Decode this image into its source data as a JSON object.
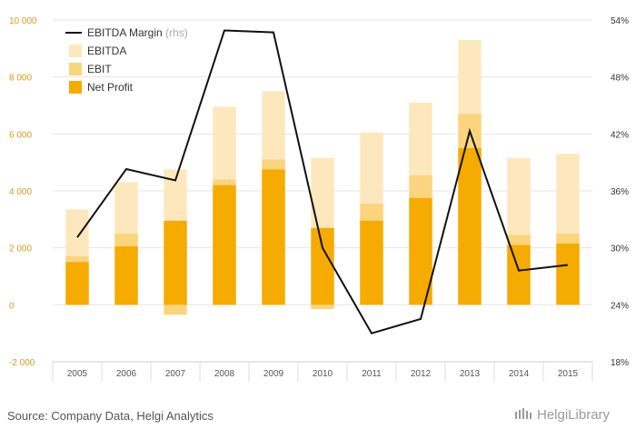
{
  "chart_data": {
    "type": "bar",
    "categories": [
      "2005",
      "2006",
      "2007",
      "2008",
      "2009",
      "2010",
      "2011",
      "2012",
      "2013",
      "2014",
      "2015"
    ],
    "series": [
      {
        "name": "EBITDA",
        "type": "bar",
        "axis": "left",
        "values": [
          3350,
          4300,
          4750,
          6950,
          7500,
          5150,
          6050,
          7100,
          9300,
          5150,
          5300
        ]
      },
      {
        "name": "EBIT",
        "type": "bar",
        "axis": "left",
        "values": [
          1700,
          2500,
          -350,
          4400,
          5100,
          -150,
          3550,
          4550,
          6700,
          2450,
          2500
        ]
      },
      {
        "name": "Net Profit",
        "type": "bar",
        "axis": "left",
        "values": [
          1500,
          2050,
          2950,
          4200,
          4750,
          2700,
          2950,
          3750,
          5500,
          2100,
          2150
        ]
      },
      {
        "name": "EBITDA Margin",
        "unit_note": "(rhs)",
        "type": "line",
        "axis": "right",
        "values": [
          31.1,
          38.3,
          37.1,
          52.9,
          52.7,
          30.0,
          21.0,
          22.5,
          42.3,
          27.6,
          28.2
        ]
      }
    ],
    "y_left": {
      "min": -2000,
      "max": 10000,
      "ticks": [
        -2000,
        0,
        2000,
        4000,
        6000,
        8000,
        10000
      ],
      "tick_labels": [
        "-2 000",
        "0",
        "2 000",
        "4 000",
        "6 000",
        "8 000",
        "10 000"
      ]
    },
    "y_right": {
      "min": 18,
      "max": 54,
      "ticks": [
        18,
        24,
        30,
        36,
        42,
        48,
        54
      ],
      "tick_labels": [
        "18%",
        "24%",
        "30%",
        "36%",
        "42%",
        "48%",
        "54%"
      ]
    },
    "grid": "horizontal",
    "legend_position": "top-left",
    "colors": {
      "EBITDA": "#fde8bd",
      "EBIT": "#fbd47e",
      "Net Profit": "#f6ab00",
      "EBITDA Margin": "#111111",
      "left_tick": "#d79a1c",
      "right_tick": "#333333",
      "grid": "#e6e6e6"
    }
  },
  "footer": {
    "source": "Source: Company Data, Helgi Analytics",
    "logo": "HelgiLibrary"
  }
}
